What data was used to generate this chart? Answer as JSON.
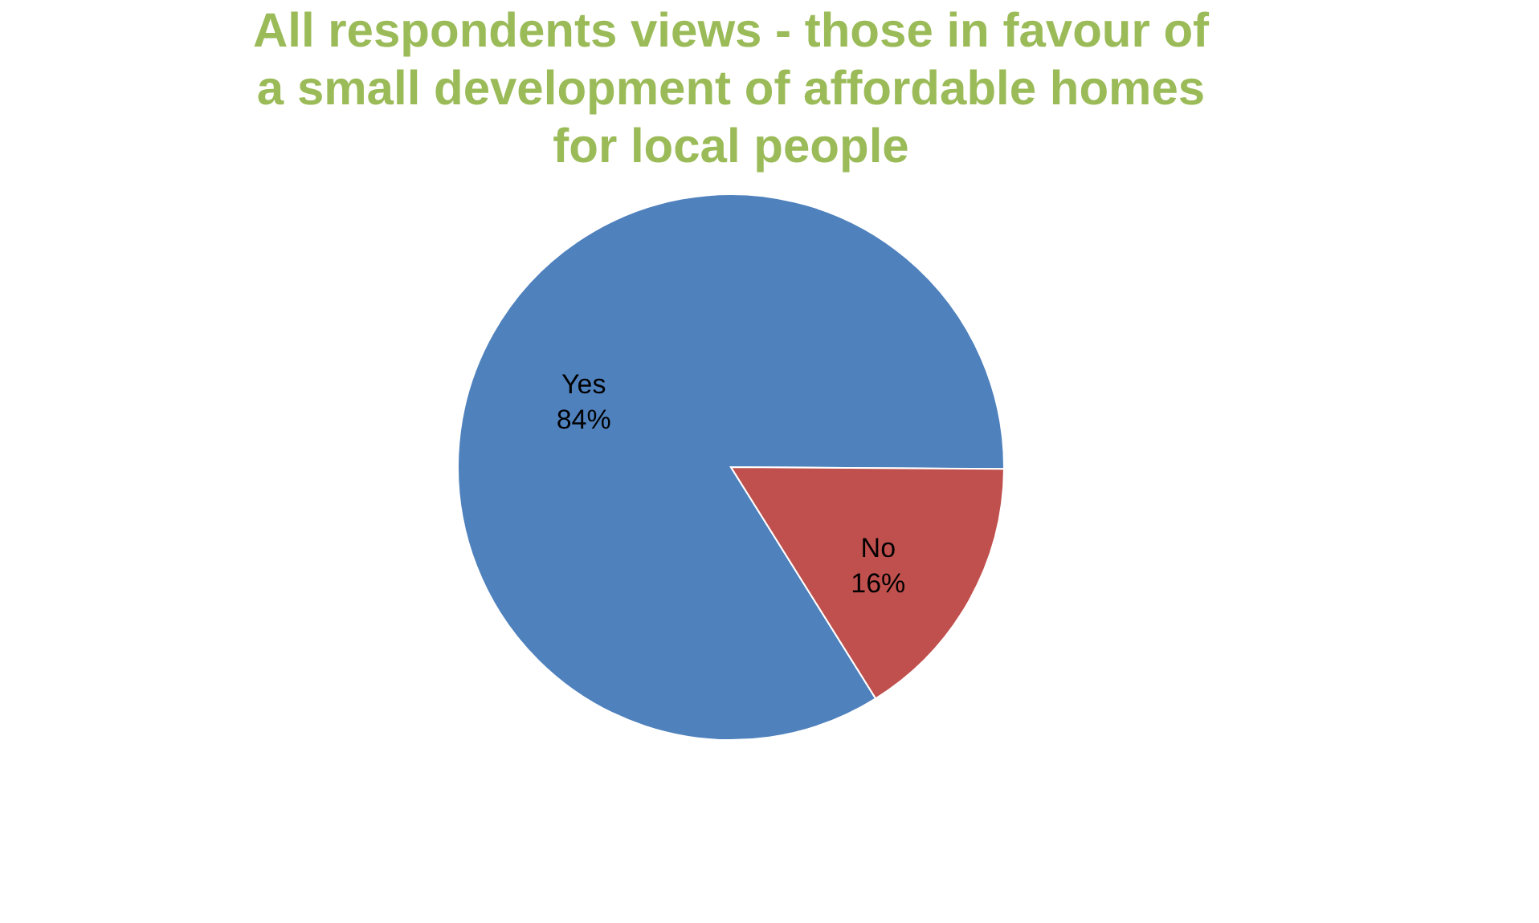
{
  "chart_data": {
    "type": "pie",
    "title": "All respondents views - those in favour of a small development of affordable homes for local people",
    "categories": [
      "Yes",
      "No"
    ],
    "values": [
      84,
      16
    ],
    "value_labels": [
      "84%",
      "16%"
    ],
    "colors": [
      "#4f81bd",
      "#c0504d"
    ],
    "legend": false
  }
}
